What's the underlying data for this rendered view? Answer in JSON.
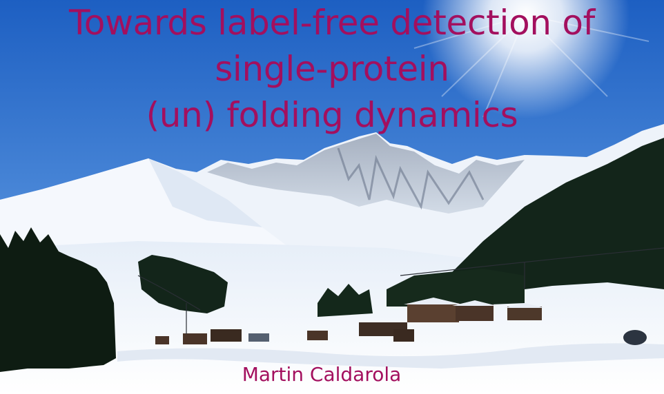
{
  "title_lines": [
    "Towards label-free detection of",
    "single-protein",
    "(un) folding dynamics"
  ],
  "author": "Martin Caldarola",
  "colors": {
    "text": "#a30f5e",
    "sky_top": "#1f62c4",
    "sky_bottom": "#6fa8e6",
    "snow": "#f4f7fb",
    "forest": "#0f1f14"
  }
}
